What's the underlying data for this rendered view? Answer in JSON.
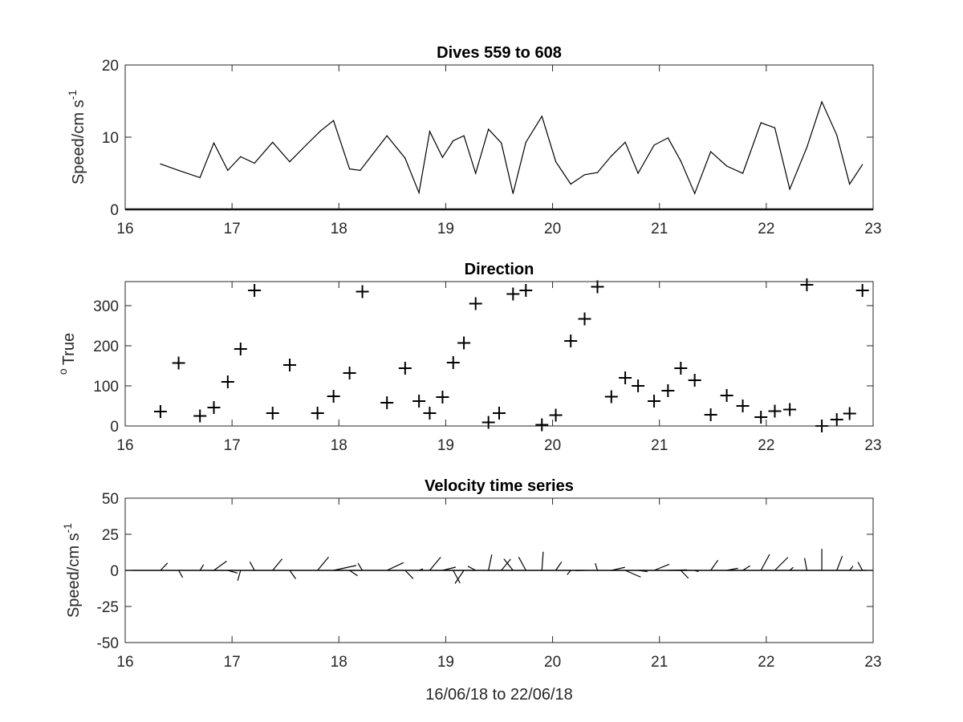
{
  "figure": {
    "xlabel": "16/06/18 to 22/06/18",
    "colors": {
      "line": "#000000",
      "axes": "#262626",
      "background": "#ffffff"
    }
  },
  "chart_data": [
    {
      "type": "line",
      "title": "Dives 559 to 608",
      "ylabel": "Speed/cm s",
      "ylabel_superscript": "-1",
      "xlim": [
        16,
        23
      ],
      "ylim": [
        0,
        20
      ],
      "xticks": [
        16,
        17,
        18,
        19,
        20,
        21,
        22,
        23
      ],
      "yticks": [
        0,
        10,
        20
      ],
      "grid": false,
      "series": [
        {
          "x": [
            16.33,
            16.5,
            16.7,
            16.83,
            16.96,
            17.08,
            17.21,
            17.38,
            17.54,
            17.7,
            17.83,
            17.95,
            18.1,
            18.2,
            18.45,
            18.62,
            18.75,
            18.85,
            18.97,
            19.07,
            19.17,
            19.28,
            19.4,
            19.52,
            19.63,
            19.75,
            19.9,
            20.03,
            20.17,
            20.3,
            20.42,
            20.55,
            20.68,
            20.8,
            20.95,
            21.08,
            21.2,
            21.33,
            21.48,
            21.63,
            21.78,
            21.95,
            22.08,
            22.22,
            22.38,
            22.52,
            22.66,
            22.78,
            22.9
          ],
          "y": [
            6.3,
            5.4,
            4.4,
            9.2,
            5.4,
            7.3,
            6.4,
            9.3,
            6.6,
            9.0,
            10.9,
            12.3,
            5.6,
            5.4,
            10.2,
            7.1,
            2.3,
            10.8,
            7.2,
            9.5,
            10.2,
            5.0,
            11.1,
            9.2,
            2.2,
            9.3,
            12.9,
            6.6,
            3.5,
            4.8,
            5.1,
            7.4,
            9.3,
            5.0,
            8.9,
            9.9,
            6.7,
            2.2,
            8.0,
            6.0,
            5.0,
            12.0,
            11.3,
            2.8,
            8.6,
            14.9,
            10.3,
            3.5,
            6.2
          ]
        }
      ]
    },
    {
      "type": "scatter",
      "title": "Direction",
      "ylabel": "True",
      "ylabel_superscript": "o",
      "xlim": [
        16,
        23
      ],
      "ylim": [
        0,
        360
      ],
      "xticks": [
        16,
        17,
        18,
        19,
        20,
        21,
        22,
        23
      ],
      "yticks": [
        0,
        100,
        200,
        300
      ],
      "grid": false,
      "marker": "+",
      "series": [
        {
          "x": [
            16.33,
            16.5,
            16.7,
            16.83,
            16.96,
            17.08,
            17.21,
            17.38,
            17.54,
            17.8,
            17.95,
            18.1,
            18.22,
            18.45,
            18.62,
            18.75,
            18.85,
            18.97,
            19.07,
            19.17,
            19.28,
            19.4,
            19.5,
            19.63,
            19.75,
            19.9,
            20.03,
            20.17,
            20.3,
            20.42,
            20.55,
            20.68,
            20.8,
            20.95,
            21.08,
            21.2,
            21.33,
            21.48,
            21.63,
            21.78,
            21.95,
            22.08,
            22.22,
            22.38,
            22.52,
            22.66,
            22.78,
            22.9
          ],
          "y": [
            36,
            157,
            25,
            46,
            110,
            192,
            338,
            32,
            152,
            32,
            74,
            132,
            335,
            58,
            144,
            62,
            32,
            72,
            158,
            207,
            305,
            9,
            32,
            329,
            338,
            3,
            27,
            212,
            267,
            347,
            73,
            120,
            100,
            62,
            88,
            144,
            114,
            28,
            76,
            50,
            22,
            37,
            41,
            352,
            0,
            16,
            31,
            338
          ]
        }
      ]
    },
    {
      "type": "quiver",
      "title": "Velocity time series",
      "ylabel": "Speed/cm s",
      "ylabel_superscript": "-1",
      "xlim": [
        16,
        23
      ],
      "ylim": [
        -50,
        50
      ],
      "xticks": [
        16,
        17,
        18,
        19,
        20,
        21,
        22,
        23
      ],
      "yticks": [
        -50,
        -25,
        0,
        25,
        50
      ],
      "grid": false,
      "baseline": 0,
      "series": [
        {
          "x": [
            16.33,
            16.5,
            16.7,
            16.83,
            16.96,
            17.08,
            17.21,
            17.38,
            17.54,
            17.8,
            17.95,
            18.1,
            18.22,
            18.45,
            18.62,
            18.75,
            18.85,
            18.97,
            19.07,
            19.17,
            19.28,
            19.4,
            19.52,
            19.63,
            19.75,
            19.9,
            20.03,
            20.17,
            20.3,
            20.42,
            20.55,
            20.68,
            20.8,
            20.95,
            21.08,
            21.2,
            21.33,
            21.48,
            21.63,
            21.78,
            21.95,
            22.08,
            22.22,
            22.38,
            22.52,
            22.66,
            22.78,
            22.9
          ],
          "speed": [
            6.3,
            5.4,
            4.4,
            9.2,
            5.4,
            7.3,
            6.4,
            9.3,
            6.6,
            10.9,
            12.3,
            5.6,
            5.4,
            10.2,
            7.1,
            2.3,
            10.8,
            7.2,
            9.5,
            10.2,
            5.0,
            11.1,
            9.2,
            9.3,
            10.0,
            12.9,
            6.6,
            3.5,
            4.8,
            5.1,
            7.4,
            9.3,
            5.0,
            8.9,
            9.9,
            6.7,
            2.2,
            8.0,
            6.0,
            5.0,
            12.0,
            11.3,
            2.8,
            8.6,
            14.9,
            10.3,
            3.5,
            6.2
          ],
          "direction": [
            36,
            157,
            25,
            46,
            110,
            192,
            338,
            32,
            152,
            32,
            74,
            132,
            335,
            58,
            144,
            62,
            32,
            72,
            158,
            207,
            305,
            9,
            32,
            329,
            338,
            3,
            27,
            212,
            267,
            347,
            73,
            120,
            100,
            62,
            88,
            144,
            114,
            28,
            76,
            50,
            22,
            37,
            41,
            352,
            0,
            16,
            31,
            338
          ]
        }
      ]
    }
  ]
}
